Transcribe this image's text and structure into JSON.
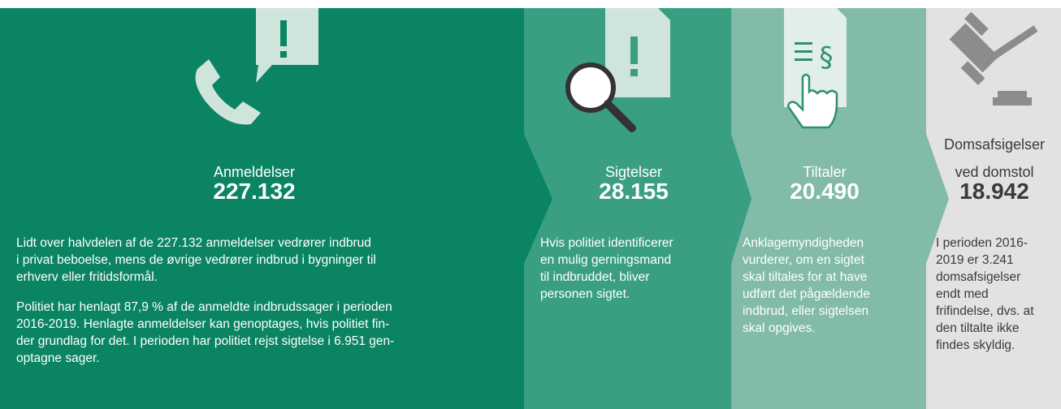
{
  "panels": [
    {
      "title": [
        "Anmeldelser"
      ],
      "value": "227.132",
      "paragraphs": [
        [
          "Lidt over halvdelen af de 227.132 anmeldelser vedrører indbrud",
          "i privat beboelse, mens de øvrige vedrører indbrud i bygninger til",
          "erhverv eller fritidsformål."
        ],
        [
          "Politiet har henlagt 87,9 % af de anmeldte indbrudssager i perioden",
          "2016-2019. Henlagte anmeldelser kan genoptages, hvis politiet fin-",
          "der grundlag for det. I perioden har politiet rejst sigtelse i 6.951 gen-",
          "optagne sager."
        ]
      ]
    },
    {
      "title": [
        "Sigtelser"
      ],
      "value": "28.155",
      "paragraphs": [
        [
          "Hvis politiet identificerer",
          "en mulig gerningsmand",
          "til indbruddet, bliver",
          "personen sigtet."
        ]
      ]
    },
    {
      "title": [
        "Tiltaler"
      ],
      "value": "20.490",
      "paragraphs": [
        [
          "Anklagemyndigheden",
          "vurderer, om en sigtet",
          "skal tiltales for at have",
          "udført det pågældende",
          "indbrud, eller sigtelsen",
          "skal opgives."
        ]
      ]
    },
    {
      "title": [
        "Domsafsigelser",
        "ved domstol"
      ],
      "value": "18.942",
      "paragraphs": [
        [
          "I perioden 2016-",
          "2019 er 3.241",
          "domsafsigelser",
          "endt med",
          "frifindelse, dvs. at",
          "den tiltalte ikke",
          "findes skyldig."
        ]
      ]
    }
  ]
}
